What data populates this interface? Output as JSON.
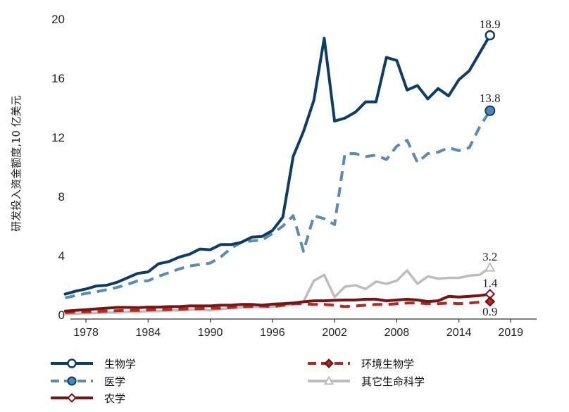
{
  "chart_data": {
    "type": "line",
    "ylabel": "研发投入资金额度,10 亿美元",
    "xlabel": "",
    "ylim": [
      0,
      20
    ],
    "xlim": [
      1976.5,
      2021.5
    ],
    "yticks": [
      0,
      4,
      8,
      12,
      16,
      20
    ],
    "xticks": [
      1978,
      1984,
      1990,
      1996,
      2002,
      2008,
      2014,
      2019
    ],
    "grid": false,
    "legend_position": "bottom",
    "x": [
      1976,
      1977,
      1978,
      1979,
      1980,
      1981,
      1982,
      1983,
      1984,
      1985,
      1986,
      1987,
      1988,
      1989,
      1990,
      1991,
      1992,
      1993,
      1994,
      1995,
      1996,
      1997,
      1998,
      1999,
      2000,
      2001,
      2002,
      2003,
      2004,
      2005,
      2006,
      2007,
      2008,
      2009,
      2010,
      2011,
      2012,
      2013,
      2014,
      2015,
      2016,
      2017,
      2018,
      2019
    ],
    "series": [
      {
        "name": "生物学",
        "color": "#0d3c66",
        "dash": "solid",
        "marker": "circle-open",
        "end_label": "18.9",
        "values": [
          1.4,
          1.6,
          1.75,
          1.95,
          2.0,
          2.2,
          2.5,
          2.8,
          2.9,
          3.45,
          3.6,
          3.9,
          4.1,
          4.45,
          4.4,
          4.75,
          4.75,
          4.9,
          5.25,
          5.3,
          5.7,
          6.6,
          10.7,
          12.4,
          14.5,
          18.7,
          13.1,
          13.3,
          13.7,
          14.4,
          14.4,
          17.4,
          17.2,
          15.2,
          15.5,
          14.6,
          15.3,
          14.8,
          15.9,
          16.5,
          17.7,
          18.9,
          null,
          null
        ]
      },
      {
        "name": "医学",
        "color": "#5a8bb5",
        "dash": "dashed",
        "marker": "circle-filled",
        "end_label": "13.8",
        "values": [
          1.15,
          1.3,
          1.45,
          1.55,
          1.7,
          1.85,
          2.05,
          2.3,
          2.3,
          2.6,
          2.85,
          3.1,
          3.3,
          3.4,
          3.5,
          3.9,
          4.5,
          4.9,
          5.0,
          5.05,
          5.5,
          6.0,
          6.7,
          4.3,
          6.7,
          6.5,
          6.1,
          10.9,
          10.9,
          10.7,
          10.8,
          10.5,
          11.4,
          11.8,
          10.3,
          10.9,
          11.0,
          11.3,
          11.1,
          11.3,
          12.7,
          13.8,
          null,
          null
        ]
      },
      {
        "name": "农学",
        "color": "#7a1414",
        "dash": "solid",
        "marker": "diamond-open",
        "end_label": "1.4",
        "values": [
          0.25,
          0.3,
          0.35,
          0.4,
          0.45,
          0.5,
          0.5,
          0.48,
          0.52,
          0.52,
          0.55,
          0.55,
          0.6,
          0.6,
          0.6,
          0.65,
          0.65,
          0.7,
          0.7,
          0.65,
          0.72,
          0.75,
          0.8,
          0.88,
          0.95,
          0.95,
          0.98,
          1.0,
          1.0,
          1.05,
          1.05,
          0.95,
          1.0,
          1.05,
          1.0,
          0.9,
          0.95,
          1.25,
          1.2,
          1.25,
          1.3,
          1.4,
          null,
          null
        ]
      },
      {
        "name": "环境生物学",
        "color": "#b22a1e",
        "dash": "dashed",
        "marker": "diamond-filled",
        "end_label": "0.9",
        "values": [
          0.15,
          0.18,
          0.2,
          0.22,
          0.25,
          0.28,
          0.3,
          0.3,
          0.33,
          0.35,
          0.35,
          0.38,
          0.4,
          0.42,
          0.45,
          0.45,
          0.5,
          0.55,
          0.55,
          0.6,
          0.55,
          0.65,
          0.75,
          0.75,
          0.7,
          0.7,
          0.65,
          0.55,
          0.6,
          0.65,
          0.7,
          0.7,
          0.75,
          0.8,
          0.8,
          0.75,
          0.75,
          0.8,
          0.75,
          0.8,
          0.85,
          0.9,
          null,
          null
        ]
      },
      {
        "name": "其它生命科学",
        "color": "#bdbdbd",
        "dash": "solid",
        "marker": "triangle-open",
        "end_label": "3.2",
        "values": [
          0.05,
          0.08,
          0.1,
          0.12,
          0.15,
          0.15,
          0.2,
          0.2,
          0.25,
          0.25,
          0.3,
          0.3,
          0.35,
          0.35,
          0.3,
          0.4,
          0.45,
          0.5,
          0.55,
          0.5,
          0.55,
          0.6,
          0.7,
          0.9,
          2.3,
          2.7,
          1.2,
          1.9,
          2.0,
          1.75,
          2.25,
          2.1,
          2.3,
          3.0,
          2.1,
          2.6,
          2.45,
          2.5,
          2.5,
          2.65,
          2.7,
          3.2,
          null,
          null
        ]
      }
    ]
  }
}
